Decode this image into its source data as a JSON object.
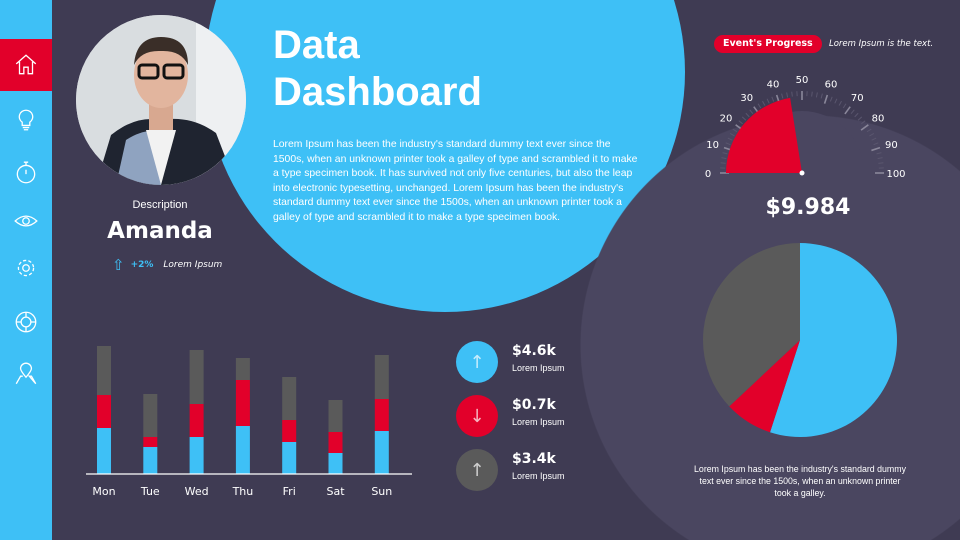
{
  "sidebar": {
    "items": [
      {
        "icon": "home-icon",
        "active": true
      },
      {
        "icon": "lightbulb-icon"
      },
      {
        "icon": "stopwatch-icon"
      },
      {
        "icon": "eye-icon"
      },
      {
        "icon": "gear-icon"
      },
      {
        "icon": "lifebuoy-icon"
      },
      {
        "icon": "map-pin-icon"
      }
    ]
  },
  "header": {
    "title_line1": "Data",
    "title_line2": "Dashboard",
    "body": "Lorem Ipsum has been the industry's standard dummy text ever since the 1500s, when an unknown printer took a galley of type and scrambled it to make a type specimen book. It has survived not only five centuries, but also the leap into electronic typesetting, unchanged. Lorem Ipsum has been the industry's standard dummy text ever since the 1500s, when an unknown printer took a galley of type and scrambled it to make a type specimen book."
  },
  "profile": {
    "label": "Description",
    "name": "Amanda",
    "change": "+2%",
    "change_label": "Lorem Ipsum"
  },
  "progress": {
    "badge": "Event's Progress",
    "caption": "Lorem Ipsum is the text.",
    "value": 45,
    "ticks": [
      "0",
      "10",
      "20",
      "30",
      "40",
      "50",
      "60",
      "70",
      "80",
      "90",
      "100"
    ],
    "amount": "$9.984"
  },
  "stats": [
    {
      "value": "$4.6k",
      "label": "Lorem Ipsum",
      "direction": "up",
      "color": "#3ec0f6"
    },
    {
      "value": "$0.7k",
      "label": "Lorem Ipsum",
      "direction": "down",
      "color": "#e2002a"
    },
    {
      "value": "$3.4k",
      "label": "Lorem Ipsum",
      "direction": "up",
      "color": "#5a5a5a"
    }
  ],
  "pie_caption": "Lorem Ipsum has been the industry's standard dummy text ever since the 1500s, when an unknown printer took a galley.",
  "colors": {
    "blue": "#3ec0f6",
    "red": "#e2002a",
    "gray": "#5a5a5a",
    "background": "#3f3b53"
  },
  "chart_data": [
    {
      "type": "bar",
      "stacked": true,
      "categories": [
        "Mon",
        "Tue",
        "Wed",
        "Thu",
        "Fri",
        "Sat",
        "Sun"
      ],
      "series": [
        {
          "color": "#3ec0f6",
          "values": [
            46,
            27,
            37,
            48,
            32,
            21,
            43
          ]
        },
        {
          "color": "#e2002a",
          "values": [
            33,
            10,
            33,
            46,
            22,
            21,
            32
          ]
        },
        {
          "color": "#5a5a5a",
          "values": [
            49,
            43,
            54,
            22,
            43,
            32,
            44
          ]
        }
      ],
      "grid": false
    },
    {
      "type": "pie",
      "values": [
        55,
        8,
        37
      ],
      "colors": [
        "#3ec0f6",
        "#e2002a",
        "#5a5a5a"
      ]
    }
  ]
}
